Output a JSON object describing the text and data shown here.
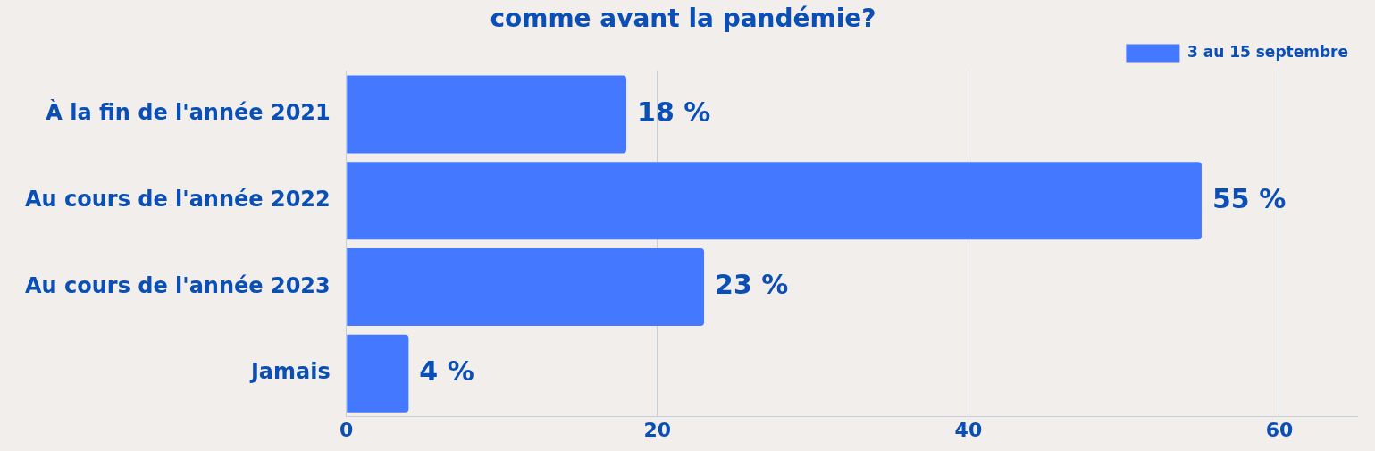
{
  "chart_data": {
    "type": "bar",
    "orientation": "horizontal",
    "title": "comme avant la pandémie?",
    "categories": [
      "À la fin de l'année 2021",
      "Au cours de l'année 2022",
      "Au cours de l'année 2023",
      "Jamais"
    ],
    "series": [
      {
        "name": "3 au 15 septembre",
        "color": "#4479ff",
        "values": [
          18,
          55,
          23,
          4
        ],
        "value_labels": [
          "18 %",
          "55 %",
          "23 %",
          "4 %"
        ]
      }
    ],
    "xlim": [
      0,
      65
    ],
    "xticks": [
      0,
      20,
      40,
      60
    ],
    "grid": "x",
    "legend": "top right"
  }
}
